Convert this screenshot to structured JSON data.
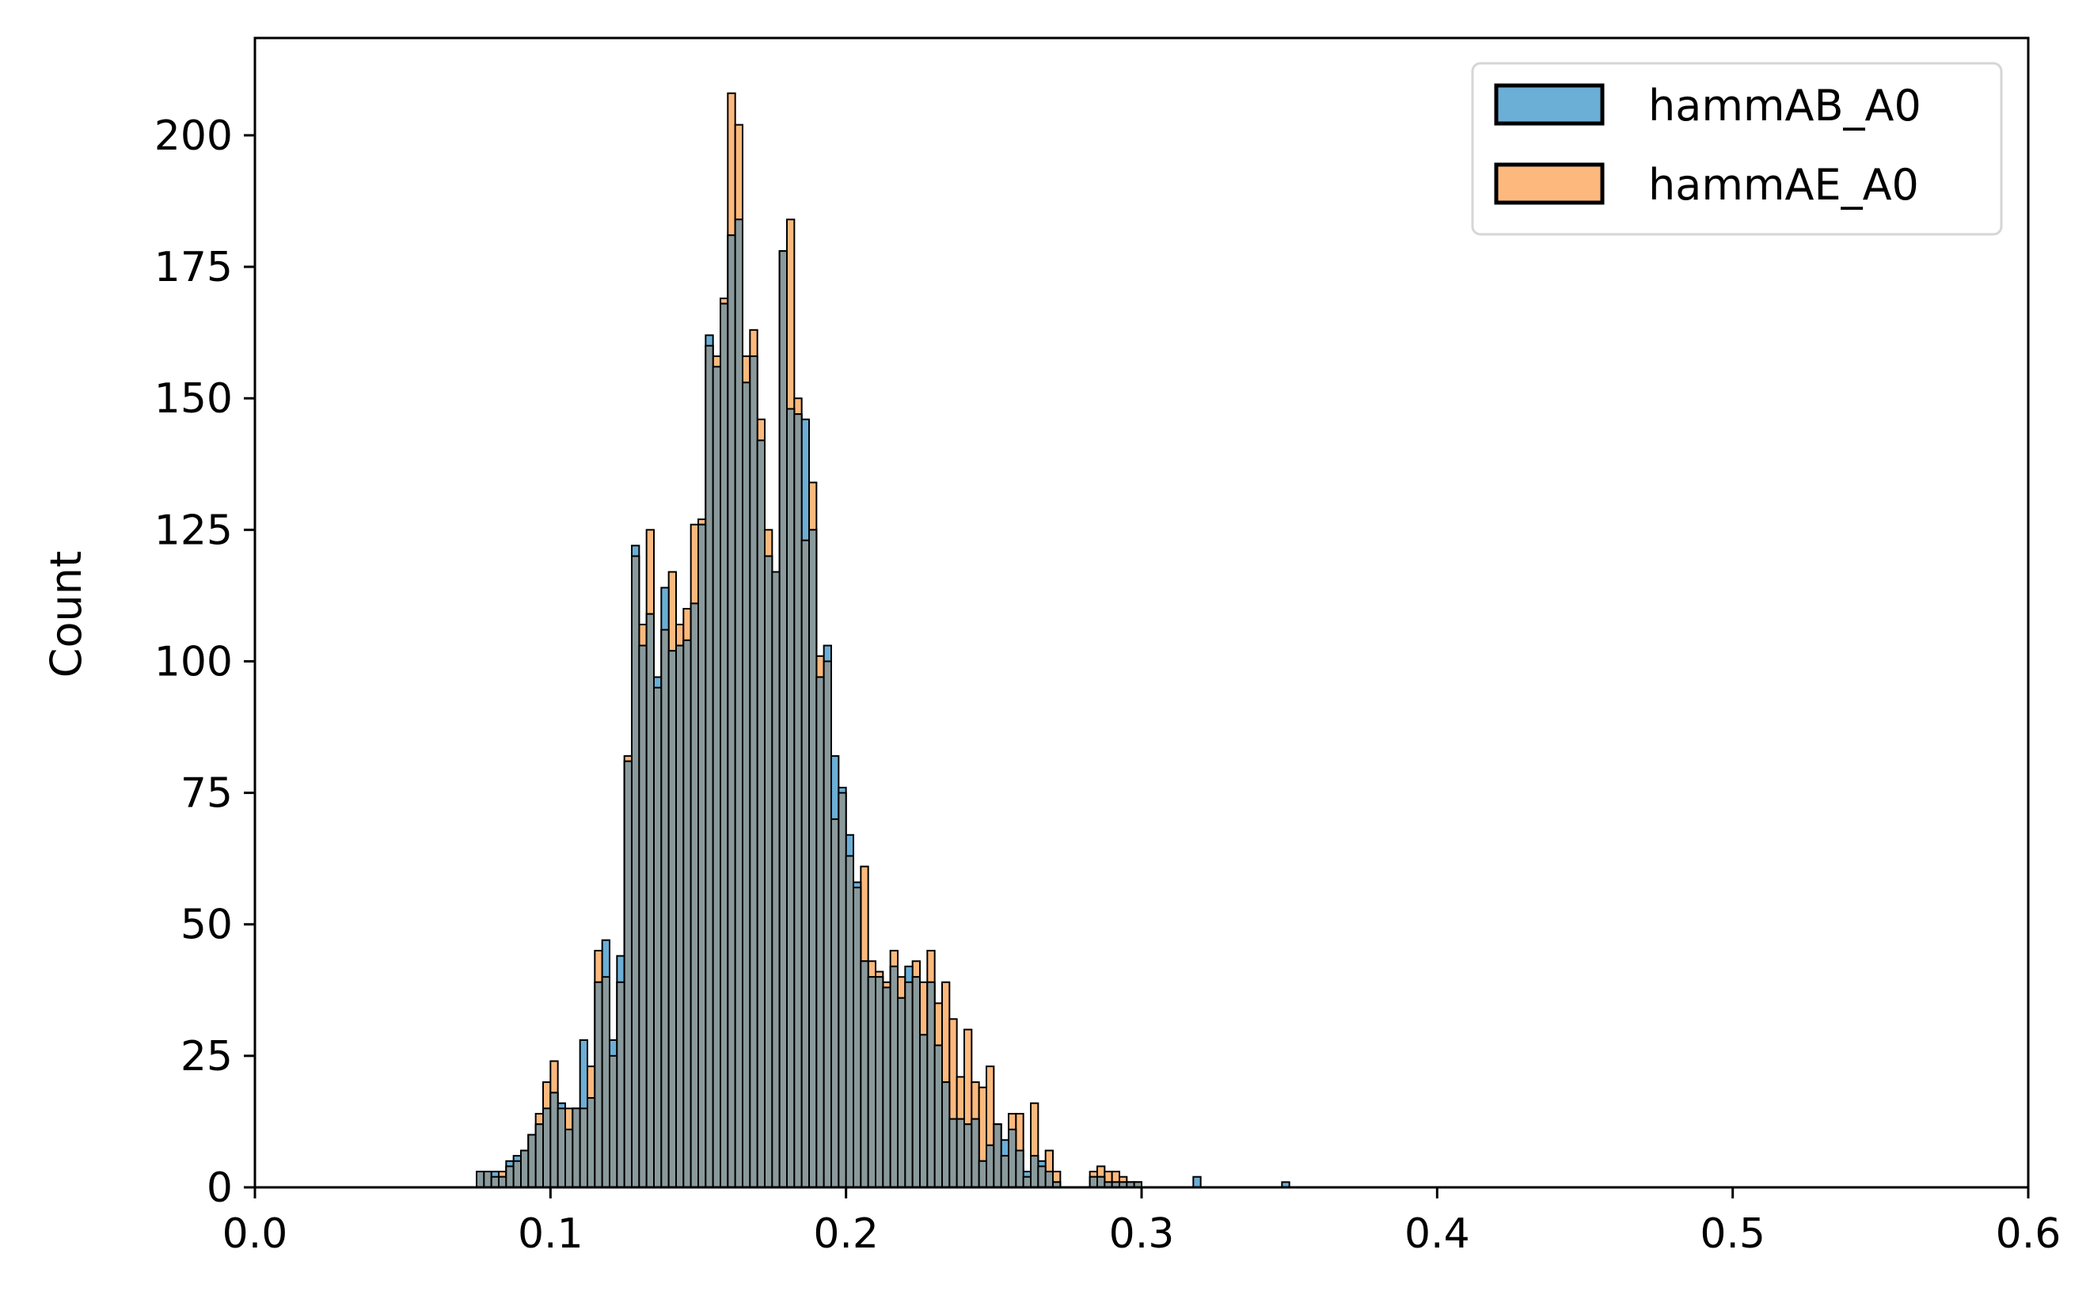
{
  "chart_data": {
    "type": "bar",
    "xlabel": "",
    "ylabel": "Count",
    "xlim": [
      0.0,
      0.6
    ],
    "ylim": [
      0,
      218.5
    ],
    "xticks": [
      "0.0",
      "0.1",
      "0.2",
      "0.3",
      "0.4",
      "0.5",
      "0.6"
    ],
    "yticks": [
      "0",
      "25",
      "50",
      "75",
      "100",
      "125",
      "150",
      "175",
      "200"
    ],
    "bin_start": 0.075,
    "bin_width": 0.0025,
    "legend_position": "top-right",
    "grid": false,
    "series": [
      {
        "name": "hammAB_A0",
        "color": "#6baed6",
        "values": [
          3,
          3,
          3,
          2,
          5,
          6,
          7,
          10,
          12,
          15,
          18,
          16,
          11,
          15,
          28,
          17,
          39,
          47,
          28,
          44,
          81,
          122,
          103,
          109,
          97,
          114,
          102,
          103,
          104,
          111,
          126,
          162,
          156,
          168,
          181,
          184,
          153,
          158,
          142,
          120,
          117,
          178,
          148,
          147,
          146,
          125,
          97,
          103,
          82,
          76,
          67,
          58,
          43,
          40,
          40,
          38,
          42,
          36,
          42,
          40,
          29,
          39,
          27,
          20,
          13,
          13,
          12,
          13,
          5,
          8,
          12,
          9,
          11,
          7,
          3,
          6,
          5,
          3,
          1,
          0,
          0,
          0,
          0,
          2,
          2,
          1,
          1,
          1,
          1,
          1,
          0,
          0,
          0,
          0,
          0,
          0,
          0,
          2,
          0,
          0,
          0,
          0,
          0,
          0,
          0,
          0,
          0,
          0,
          0,
          1
        ]
      },
      {
        "name": "hammAE_A0",
        "color": "#fdb97d",
        "values": [
          3,
          3,
          2,
          3,
          4,
          5,
          7,
          10,
          14,
          20,
          24,
          15,
          15,
          15,
          15,
          23,
          45,
          40,
          25,
          39,
          82,
          120,
          107,
          125,
          95,
          106,
          117,
          107,
          110,
          126,
          127,
          160,
          158,
          169,
          208,
          202,
          158,
          163,
          146,
          125,
          117,
          178,
          184,
          150,
          123,
          134,
          101,
          100,
          70,
          75,
          63,
          57,
          61,
          43,
          41,
          39,
          45,
          40,
          39,
          43,
          39,
          45,
          35,
          39,
          32,
          21,
          30,
          20,
          19,
          23,
          12,
          6,
          14,
          14,
          2,
          16,
          4,
          7,
          3,
          0,
          0,
          0,
          0,
          3,
          4,
          3,
          3,
          2,
          1,
          1,
          0,
          0,
          0,
          0,
          0,
          0,
          0,
          0,
          0,
          0,
          0,
          0,
          0,
          0,
          0,
          0,
          0,
          0,
          0,
          0
        ]
      }
    ]
  }
}
